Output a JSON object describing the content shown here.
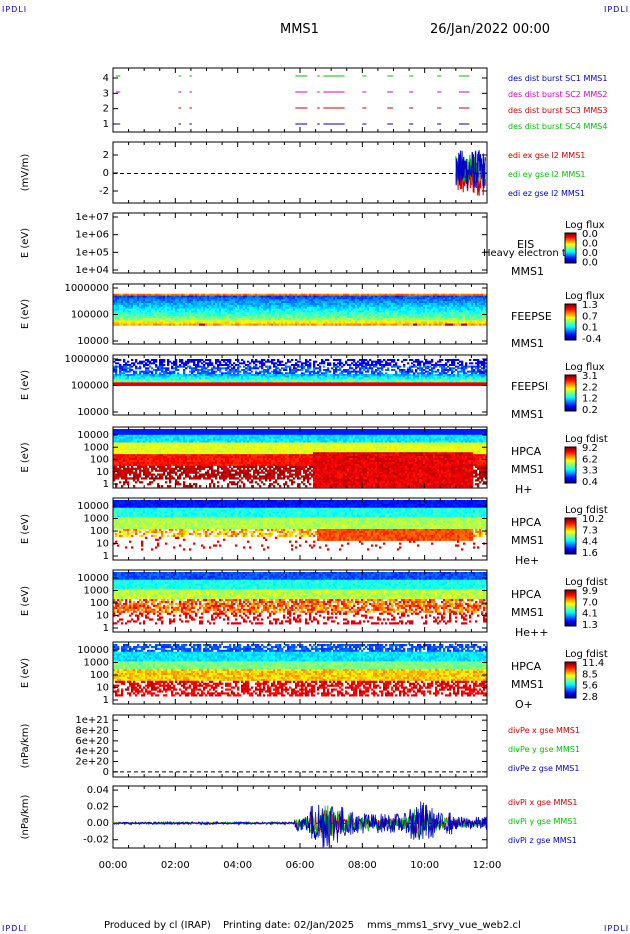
{
  "corner_label": "IPDLI",
  "header": {
    "mission": "MMS1",
    "date": "26/Jan/2022 00:00"
  },
  "footer": {
    "produced": "Produced by cl (IRAP)",
    "printing": "Printing date: 02/Jan/2025",
    "file": "mms_mms1_srvy_vue_web2.cl"
  },
  "colors": {
    "red": "#d00000",
    "magenta": "#d000d0",
    "green": "#00c000",
    "blue": "#0000c8"
  },
  "chart_data": [
    {
      "id": "burst",
      "type": "line",
      "ylim": [
        0.5,
        4.5
      ],
      "yticks": [
        "1",
        "2",
        "3",
        "4"
      ],
      "legend": [
        "des dist burst SC1 MMS1",
        "des dist burst SC2 MMS2",
        "des dist burst SC3 MMS3",
        "des dist burst SC4 MMS4"
      ],
      "series": [
        {
          "name": "des dist burst SC1 MMS1",
          "level": 1,
          "segments": [
            [
              0.1,
              0.2
            ],
            [
              2.1,
              2.15
            ],
            [
              2.45,
              2.5
            ],
            [
              5.85,
              6.2
            ],
            [
              6.55,
              6.6
            ],
            [
              6.75,
              7.4
            ],
            [
              8.0,
              8.1
            ],
            [
              8.8,
              8.95
            ],
            [
              9.5,
              9.6
            ],
            [
              10.4,
              10.5
            ],
            [
              11.1,
              11.4
            ]
          ]
        },
        {
          "name": "des dist burst SC2 MMS2",
          "level": 2,
          "segments": [
            [
              2.1,
              2.15
            ],
            [
              2.45,
              2.5
            ],
            [
              5.85,
              6.2
            ],
            [
              6.55,
              6.6
            ],
            [
              6.75,
              7.4
            ],
            [
              8.0,
              8.1
            ],
            [
              8.8,
              8.95
            ],
            [
              9.5,
              9.6
            ],
            [
              10.4,
              10.5
            ],
            [
              11.1,
              11.4
            ]
          ]
        },
        {
          "name": "des dist burst SC3 MMS3",
          "level": 3,
          "segments": [
            [
              0.1,
              0.2
            ],
            [
              2.1,
              2.15
            ],
            [
              2.45,
              2.5
            ],
            [
              5.85,
              6.2
            ],
            [
              6.55,
              6.6
            ],
            [
              6.75,
              7.4
            ],
            [
              8.0,
              8.1
            ],
            [
              8.8,
              8.95
            ],
            [
              9.5,
              9.6
            ],
            [
              10.4,
              10.5
            ],
            [
              11.1,
              11.4
            ]
          ]
        },
        {
          "name": "des dist burst SC4 MMS4",
          "level": 4,
          "segments": [
            [
              0.1,
              0.2
            ],
            [
              2.1,
              2.15
            ],
            [
              2.45,
              2.5
            ],
            [
              5.85,
              6.2
            ],
            [
              6.55,
              6.6
            ],
            [
              6.75,
              7.4
            ],
            [
              8.0,
              8.1
            ],
            [
              8.8,
              8.95
            ],
            [
              9.5,
              9.6
            ],
            [
              10.4,
              10.5
            ],
            [
              11.1,
              11.4
            ]
          ]
        }
      ]
    },
    {
      "id": "edi",
      "type": "line",
      "ylabel": "(mV/m)",
      "ylim": [
        -3,
        3
      ],
      "yticks": [
        "-2",
        "0",
        "2"
      ],
      "legend": [
        "edi ex gse l2 MMS1",
        "edi ey gse l2 MMS1",
        "edi ez gse l2 MMS1"
      ],
      "x_range": [
        11.0,
        11.95
      ],
      "amplitude": [
        1.8,
        1.5,
        2.0
      ]
    },
    {
      "id": "eis",
      "type": "heatmap",
      "ylabel": "E (eV)",
      "yticks": [
        "1e+04",
        "1e+05",
        "1e+06",
        "1e+07"
      ],
      "labels": [
        "EIS",
        "MMS1"
      ],
      "overlay_text": "Heavy electron to",
      "colorbar": {
        "title": "Log flux",
        "ticks": [
          "0.0",
          "0.0",
          "0.0",
          "0.0"
        ]
      }
    },
    {
      "id": "feepse",
      "type": "heatmap",
      "ylabel": "E (eV)",
      "yticks": [
        "10000",
        "100000",
        "1000000"
      ],
      "labels": [
        "FEEPSE",
        "MMS1"
      ],
      "colorbar": {
        "title": "Log flux",
        "ticks": [
          "1.3",
          "0.7",
          "0.1",
          "-0.4"
        ]
      }
    },
    {
      "id": "feepsi",
      "type": "heatmap",
      "ylabel": "E (eV)",
      "yticks": [
        "10000",
        "100000",
        "1000000"
      ],
      "labels": [
        "FEEPSI",
        "MMS1"
      ],
      "colorbar": {
        "title": "Log flux",
        "ticks": [
          "3.1",
          "2.2",
          "1.2",
          "0.2"
        ]
      }
    },
    {
      "id": "hpca_h",
      "type": "heatmap",
      "ylabel": "E (eV)",
      "yticks": [
        "1",
        "10",
        "100",
        "1000",
        "10000"
      ],
      "labels": [
        "HPCA",
        "MMS1",
        "H+"
      ],
      "colorbar": {
        "title": "Log fdist",
        "ticks": [
          "9.2",
          "6.2",
          "3.3",
          "0.4"
        ]
      }
    },
    {
      "id": "hpca_he",
      "type": "heatmap",
      "ylabel": "E (eV)",
      "yticks": [
        "1",
        "10",
        "100",
        "1000",
        "10000"
      ],
      "labels": [
        "HPCA",
        "MMS1",
        "He+"
      ],
      "colorbar": {
        "title": "Log fdist",
        "ticks": [
          "10.2",
          "7.3",
          "4.4",
          "1.6"
        ]
      }
    },
    {
      "id": "hpca_hepp",
      "type": "heatmap",
      "ylabel": "E (eV)",
      "yticks": [
        "1",
        "10",
        "100",
        "1000",
        "10000"
      ],
      "labels": [
        "HPCA",
        "MMS1",
        "He++"
      ],
      "colorbar": {
        "title": "Log fdist",
        "ticks": [
          "9.9",
          "7.0",
          "4.1",
          "1.3"
        ]
      }
    },
    {
      "id": "hpca_o",
      "type": "heatmap",
      "ylabel": "E (eV)",
      "yticks": [
        "1",
        "10",
        "100",
        "1000",
        "10000"
      ],
      "labels": [
        "HPCA",
        "MMS1",
        "O+"
      ],
      "colorbar": {
        "title": "Log fdist",
        "ticks": [
          "11.4",
          "8.5",
          "5.6",
          "2.8"
        ]
      }
    },
    {
      "id": "divpe",
      "type": "line",
      "ylabel": "(nPa/km)",
      "ylim": [
        -1e+20,
        1.1e+21
      ],
      "yticks": [
        "0",
        "2e+20",
        "4e+20",
        "6e+20",
        "8e+20",
        "1e+21"
      ],
      "legend": [
        "divPe x gse MMS1",
        "divPe y gse MMS1",
        "divPe z gse MMS1"
      ]
    },
    {
      "id": "divpi",
      "type": "line",
      "ylabel": "(nPa/km)",
      "ylim": [
        -0.03,
        0.045
      ],
      "yticks": [
        "-0.02",
        "0.00",
        "0.02",
        "0.04"
      ],
      "legend": [
        "divPi x gse MMS1",
        "divPi y gse MMS1",
        "divPi z gse MMS1"
      ]
    }
  ],
  "x_axis": {
    "ticks": [
      "00:00",
      "02:00",
      "04:00",
      "06:00",
      "08:00",
      "10:00",
      "12:00"
    ],
    "range_hours": [
      0,
      12
    ]
  }
}
